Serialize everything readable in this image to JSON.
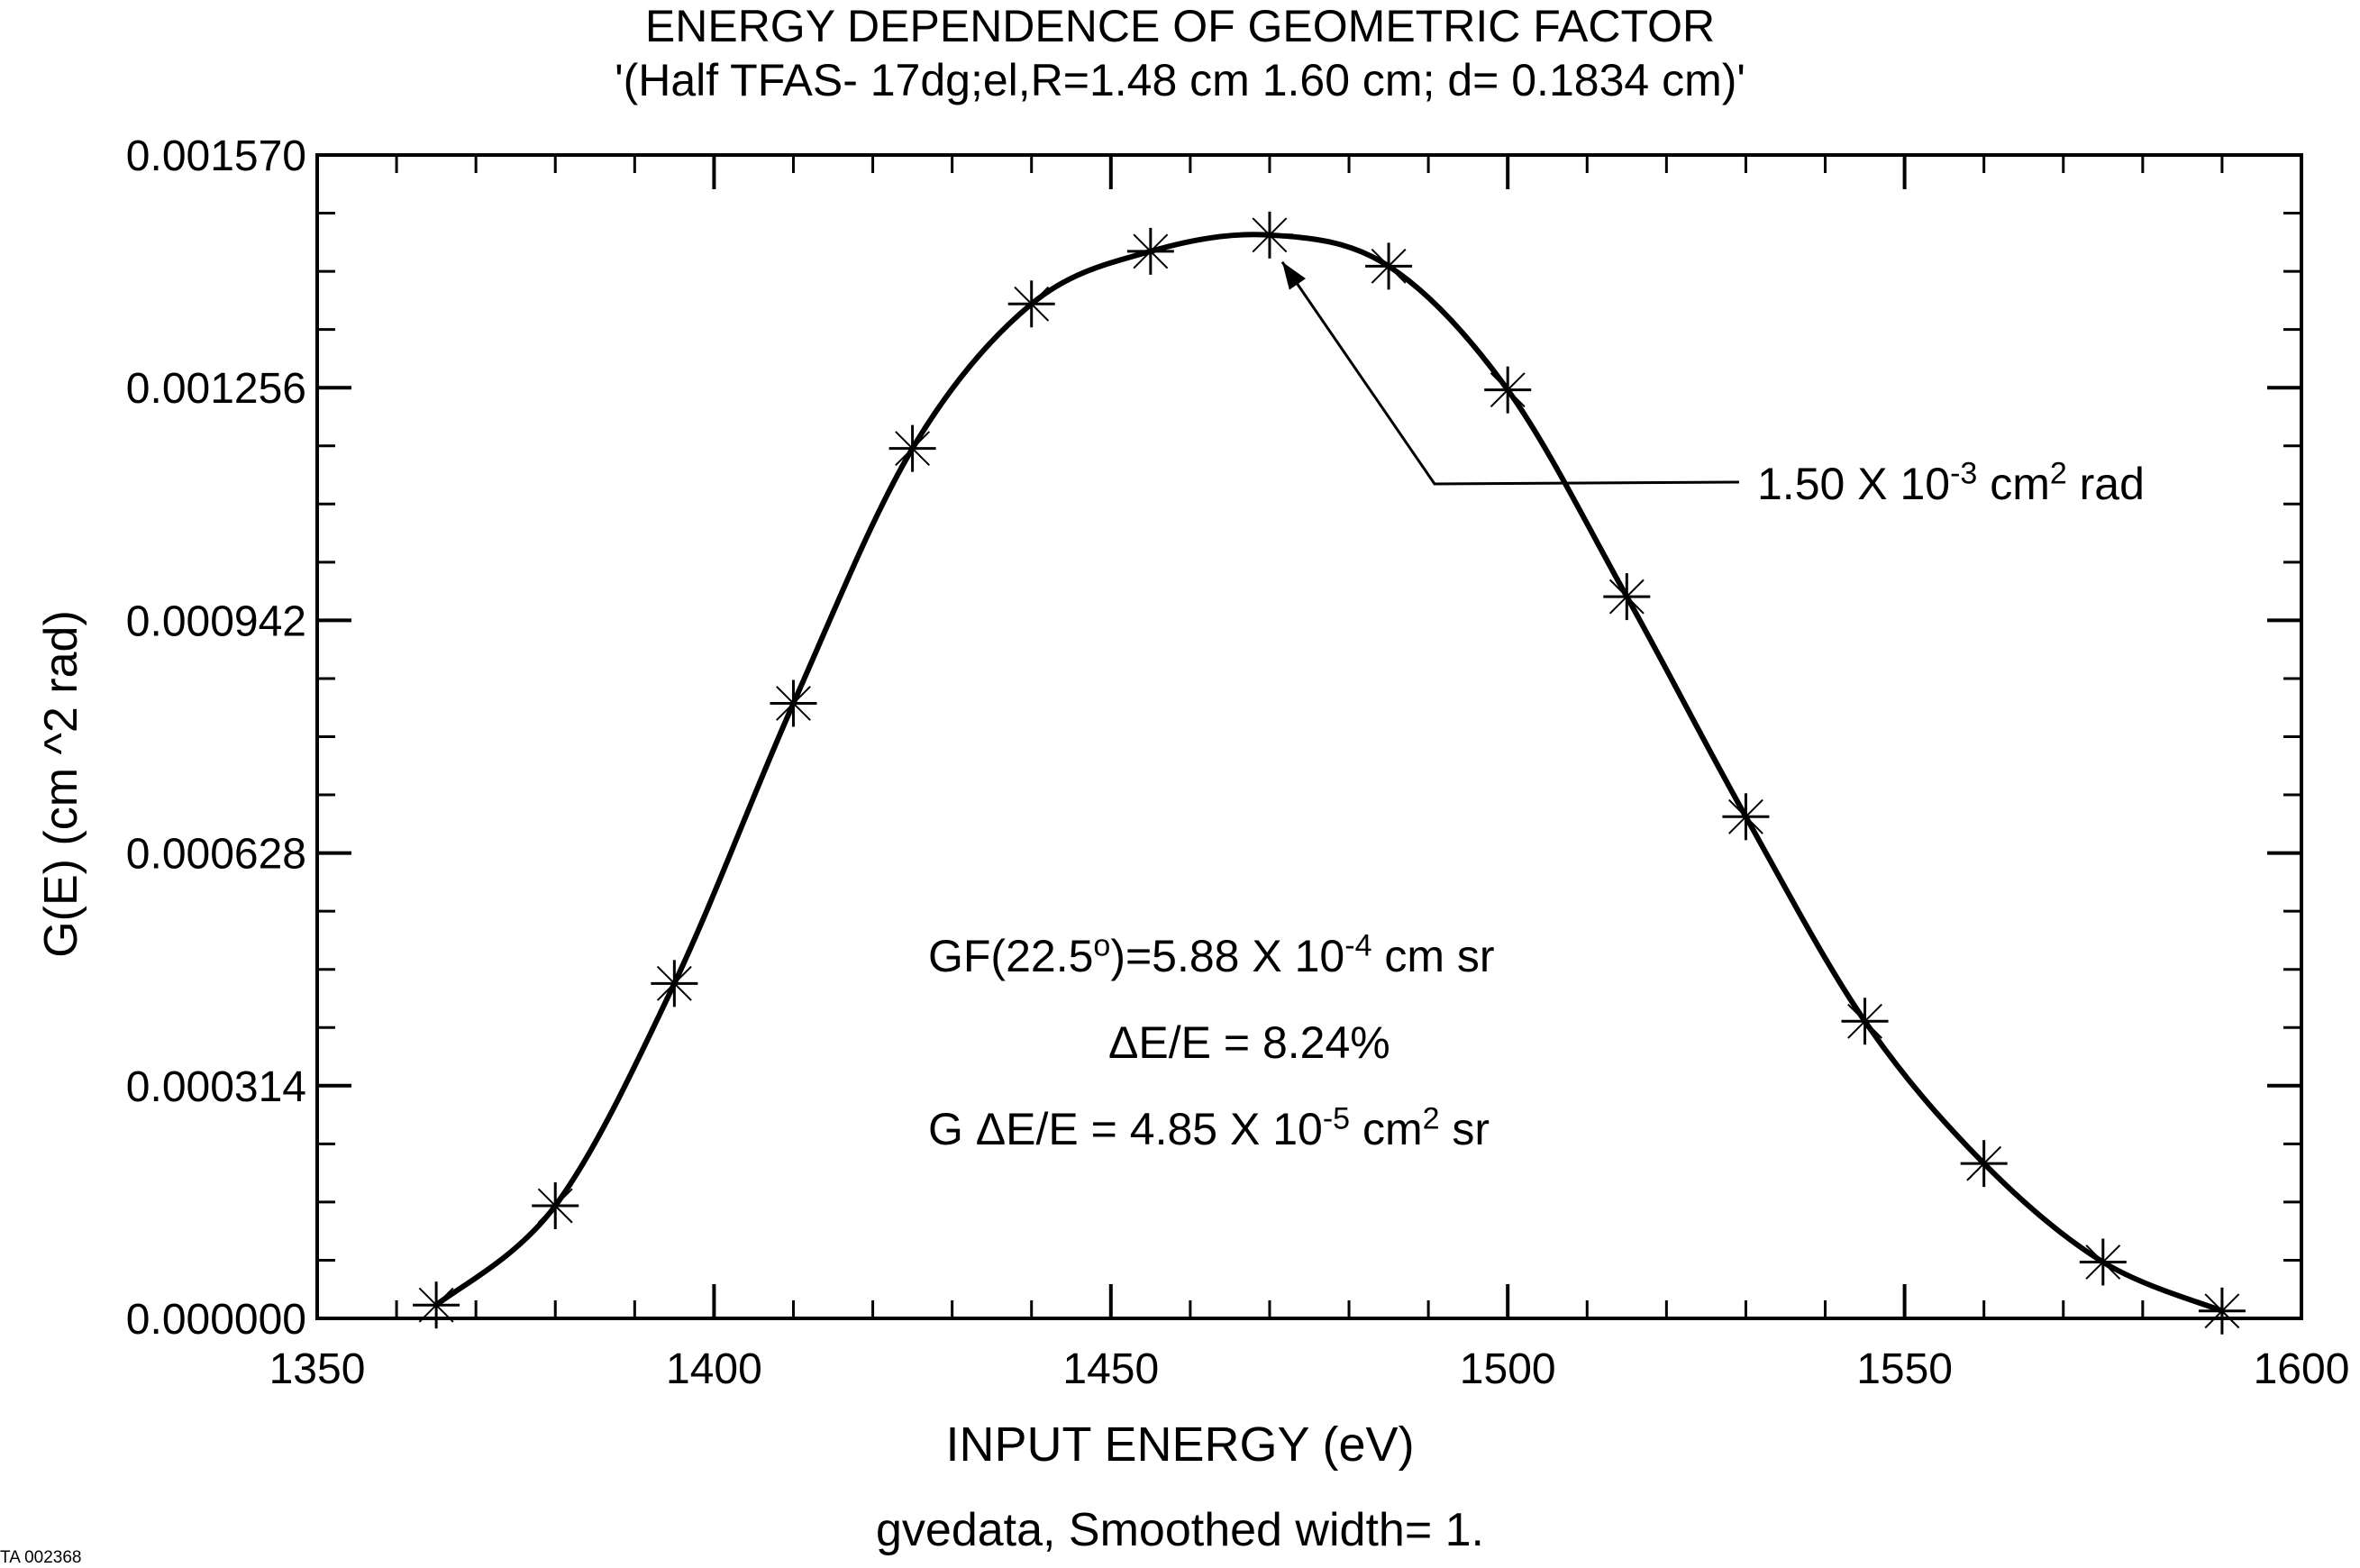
{
  "title": "ENERGY DEPENDENCE OF GEOMETRIC FACTOR",
  "subtitle": "'(Half TFAS- 17dg;el,R=1.48 cm 1.60 cm; d= 0.1834 cm)'",
  "doc_id": "TA 002368",
  "colors": {
    "line": "#000000",
    "background": "#ffffff"
  },
  "annotations": {
    "peak": {
      "prefix": "1.50 X 10",
      "exp": "-3",
      "mid": " cm",
      "exp2": "2",
      "suffix": " rad"
    },
    "gf": {
      "prefix": "GF(22.5",
      "deg": "o",
      "mid": ")=5.88 X 10",
      "exp": "-4",
      "suffix": " cm sr"
    },
    "delta_e": "ΔE/E = 8.24%",
    "g_delta_e": {
      "prefix": "G ΔE/E = 4.85 X 10",
      "exp": "-5",
      "mid": " cm",
      "exp2": "2",
      "suffix": " sr"
    }
  },
  "chart_data": {
    "type": "line",
    "title": "ENERGY DEPENDENCE OF GEOMETRIC FACTOR",
    "subtitle": "'(Half TFAS- 17dg;el,R=1.48 cm 1.60 cm; d= 0.1834 cm)'",
    "xlabel": "INPUT ENERGY (eV)",
    "ylabel": "G(E) (cm ^2 rad)",
    "caption": "gvedata, Smoothed width= 1.",
    "xlim": [
      1350,
      1600
    ],
    "ylim": [
      0.0,
      0.00157
    ],
    "xticks": [
      1350,
      1400,
      1450,
      1500,
      1550,
      1600
    ],
    "xtick_labels": [
      "1350",
      "1400",
      "1450",
      "1500",
      "1550",
      "1600"
    ],
    "yticks": [
      0.0,
      0.000314,
      0.000628,
      0.000942,
      0.001256,
      0.00157
    ],
    "ytick_labels": [
      "0.000000",
      "0.000314",
      "0.000628",
      "0.000942",
      "0.001256",
      "0.001570"
    ],
    "grid": false,
    "marker": "asterisk",
    "series": [
      {
        "name": "gvedata",
        "x": [
          1365,
          1380,
          1395,
          1410,
          1425,
          1440,
          1455,
          1470,
          1485,
          1500,
          1515,
          1530,
          1545,
          1560,
          1575,
          1590
        ],
        "y": [
          1.8e-05,
          0.000152,
          0.000452,
          0.00083,
          0.001174,
          0.001369,
          0.00144,
          0.001462,
          0.00142,
          0.001253,
          0.000974,
          0.000677,
          0.000401,
          0.000209,
          7.6e-05,
          1e-05
        ]
      }
    ],
    "arrow_annotation": {
      "x": 1470,
      "y": 0.00145,
      "text": "1.50 X 10^-3 cm^2 rad"
    }
  }
}
